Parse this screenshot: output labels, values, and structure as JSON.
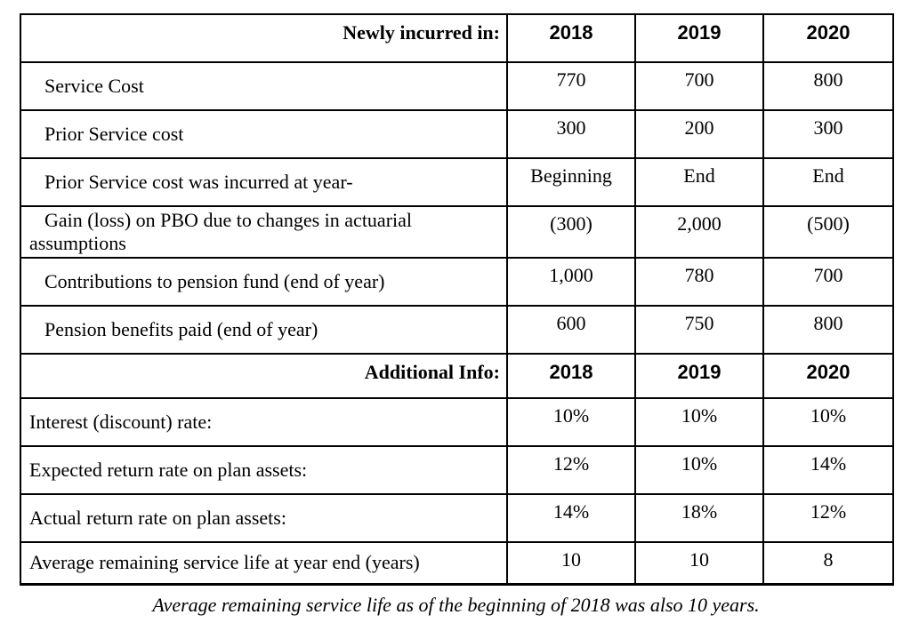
{
  "colors": {
    "text": "#000000",
    "background": "#ffffff",
    "border": "#000000"
  },
  "table": {
    "section1": {
      "header_label": "Newly incurred in:",
      "years": [
        "2018",
        "2019",
        "2020"
      ],
      "rows": [
        {
          "label": "Service Cost",
          "values": [
            "770",
            "700",
            "800"
          ]
        },
        {
          "label": "Prior Service cost",
          "values": [
            "300",
            "200",
            "300"
          ]
        },
        {
          "label": "Prior Service cost was incurred at year-",
          "values": [
            "Beginning",
            "End",
            "End"
          ]
        },
        {
          "label": "Gain (loss) on PBO due to changes in actuarial assumptions",
          "values": [
            "(300)",
            "2,000",
            "(500)"
          ]
        },
        {
          "label": "Contributions to pension fund (end of year)",
          "values": [
            "1,000",
            "780",
            "700"
          ]
        },
        {
          "label": "Pension benefits paid (end of year)",
          "values": [
            "600",
            "750",
            "800"
          ]
        }
      ]
    },
    "section2": {
      "header_label": "Additional Info:",
      "years": [
        "2018",
        "2019",
        "2020"
      ],
      "rows": [
        {
          "label": "Interest (discount) rate:",
          "values": [
            "10%",
            "10%",
            "10%"
          ]
        },
        {
          "label": "Expected return rate on plan assets:",
          "values": [
            "12%",
            "10%",
            "14%"
          ]
        },
        {
          "label": "Actual return rate on plan assets:",
          "values": [
            "14%",
            "18%",
            "12%"
          ]
        },
        {
          "label": "Average remaining service life at year end (years)",
          "values": [
            "10",
            "10",
            "8"
          ]
        }
      ]
    }
  },
  "page": {
    "footnote": "Average remaining service life as of the beginning of 2018 was also 10 years."
  }
}
